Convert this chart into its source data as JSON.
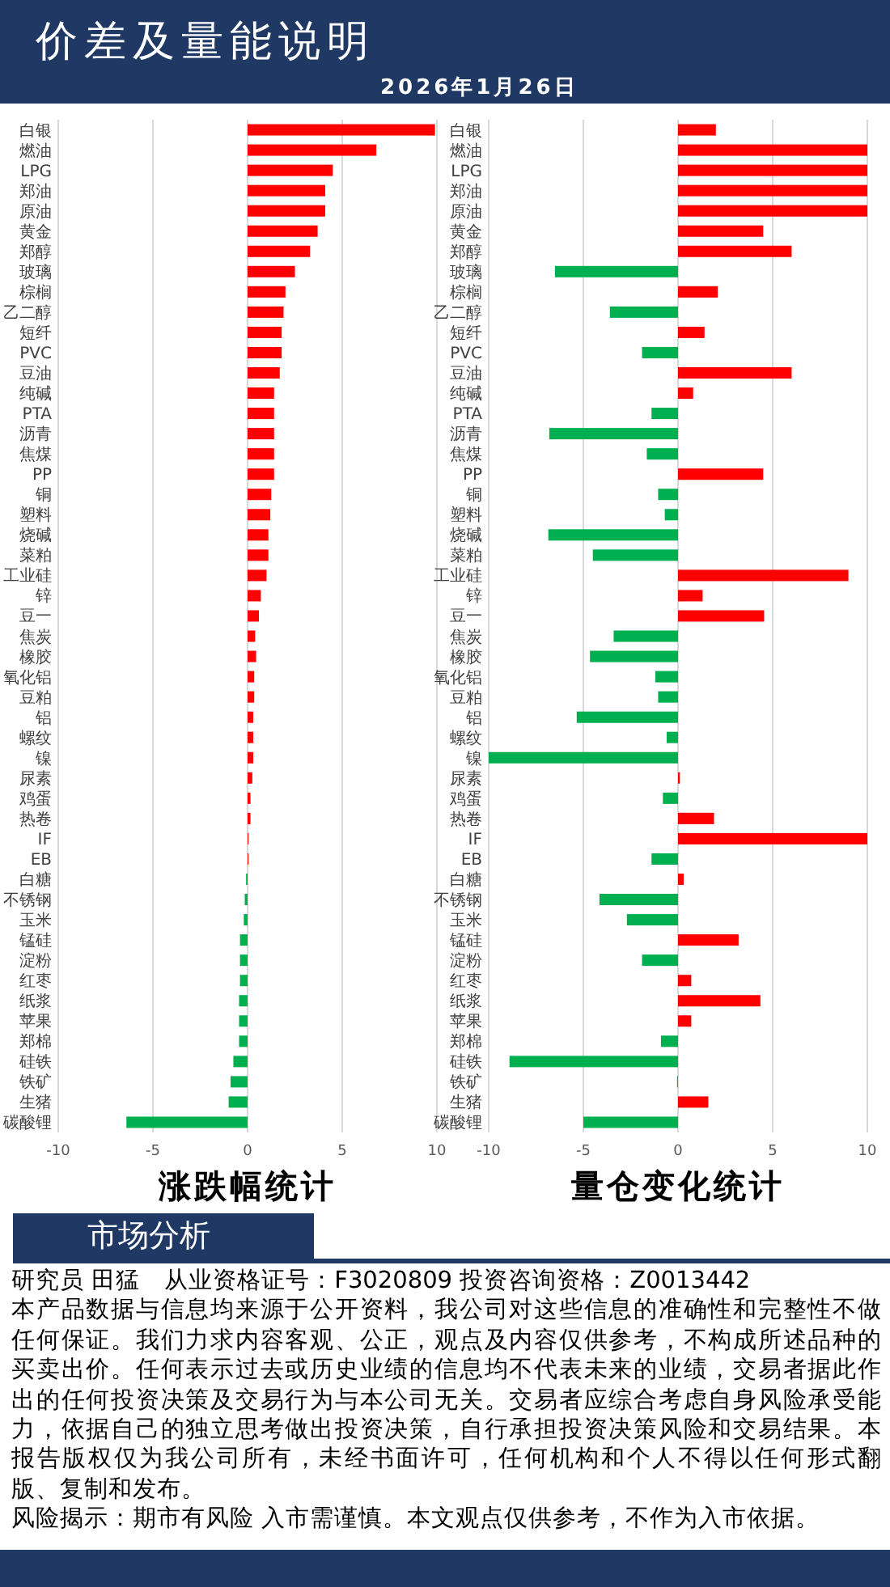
{
  "chart_data": [
    {
      "type": "bar",
      "orientation": "horizontal",
      "title": "涨跌幅统计",
      "categories": [
        "白银",
        "燃油",
        "LPG",
        "郑油",
        "原油",
        "黄金",
        "郑醇",
        "玻璃",
        "棕榈",
        "乙二醇",
        "短纤",
        "PVC",
        "豆油",
        "纯碱",
        "PTA",
        "沥青",
        "焦煤",
        "PP",
        "铜",
        "塑料",
        "烧碱",
        "菜粕",
        "工业硅",
        "锌",
        "豆一",
        "焦炭",
        "橡胶",
        "氧化铝",
        "豆粕",
        "铝",
        "螺纹",
        "镍",
        "尿素",
        "鸡蛋",
        "热卷",
        "IF",
        "EB",
        "白糖",
        "不锈钢",
        "玉米",
        "锰硅",
        "淀粉",
        "红枣",
        "纸浆",
        "苹果",
        "郑棉",
        "硅铁",
        "铁矿",
        "生猪",
        "碳酸锂"
      ],
      "values": [
        9.9,
        6.8,
        4.5,
        4.1,
        4.1,
        3.7,
        3.3,
        2.5,
        2.0,
        1.9,
        1.8,
        1.8,
        1.7,
        1.4,
        1.4,
        1.4,
        1.4,
        1.4,
        1.25,
        1.2,
        1.1,
        1.1,
        1.0,
        0.7,
        0.6,
        0.4,
        0.45,
        0.35,
        0.35,
        0.3,
        0.3,
        0.3,
        0.25,
        0.15,
        0.15,
        0.05,
        0.05,
        -0.08,
        -0.15,
        -0.2,
        -0.4,
        -0.4,
        -0.4,
        -0.45,
        -0.45,
        -0.45,
        -0.75,
        -0.9,
        -1.0,
        -6.4
      ],
      "colors": [
        "#ff0000",
        "#ff0000",
        "#ff0000",
        "#ff0000",
        "#ff0000",
        "#ff0000",
        "#ff0000",
        "#ff0000",
        "#ff0000",
        "#ff0000",
        "#ff0000",
        "#ff0000",
        "#ff0000",
        "#ff0000",
        "#ff0000",
        "#ff0000",
        "#ff0000",
        "#ff0000",
        "#ff0000",
        "#ff0000",
        "#ff0000",
        "#ff0000",
        "#ff0000",
        "#ff0000",
        "#ff0000",
        "#ff0000",
        "#ff0000",
        "#ff0000",
        "#ff0000",
        "#ff0000",
        "#ff0000",
        "#ff0000",
        "#ff0000",
        "#ff0000",
        "#ff0000",
        "#ff0000",
        "#ff0000",
        "#00b050",
        "#00b050",
        "#00b050",
        "#00b050",
        "#00b050",
        "#00b050",
        "#00b050",
        "#00b050",
        "#00b050",
        "#00b050",
        "#00b050",
        "#00b050",
        "#00b050"
      ],
      "xlim": [
        -10,
        10
      ],
      "xticks": [
        -10,
        -5,
        0,
        5,
        10
      ],
      "grid": "x"
    },
    {
      "type": "bar",
      "orientation": "horizontal",
      "title": "量仓变化统计",
      "categories": [
        "白银",
        "燃油",
        "LPG",
        "郑油",
        "原油",
        "黄金",
        "郑醇",
        "玻璃",
        "棕榈",
        "乙二醇",
        "短纤",
        "PVC",
        "豆油",
        "纯碱",
        "PTA",
        "沥青",
        "焦煤",
        "PP",
        "铜",
        "塑料",
        "烧碱",
        "菜粕",
        "工业硅",
        "锌",
        "豆一",
        "焦炭",
        "橡胶",
        "氧化铝",
        "豆粕",
        "铝",
        "螺纹",
        "镍",
        "尿素",
        "鸡蛋",
        "热卷",
        "IF",
        "EB",
        "白糖",
        "不锈钢",
        "玉米",
        "锰硅",
        "淀粉",
        "红枣",
        "纸浆",
        "苹果",
        "郑棉",
        "硅铁",
        "铁矿",
        "生猪",
        "碳酸锂"
      ],
      "values": [
        2.0,
        10,
        10,
        10,
        10,
        4.5,
        6.0,
        -6.5,
        2.1,
        -3.6,
        1.4,
        -1.9,
        6.0,
        0.8,
        -1.4,
        -6.8,
        -1.65,
        4.5,
        -1.05,
        -0.7,
        -6.85,
        -4.5,
        9.0,
        1.3,
        4.55,
        -3.4,
        -4.65,
        -1.2,
        -1.05,
        -5.35,
        -0.6,
        -10,
        0.1,
        -0.8,
        1.9,
        10,
        -1.4,
        0.3,
        -4.15,
        -2.7,
        3.2,
        -1.9,
        0.7,
        4.35,
        0.7,
        -0.9,
        -8.9,
        -0.05,
        1.6,
        -5.0
      ],
      "colors": [
        "#ff0000",
        "#ff0000",
        "#ff0000",
        "#ff0000",
        "#ff0000",
        "#ff0000",
        "#ff0000",
        "#00b050",
        "#ff0000",
        "#00b050",
        "#ff0000",
        "#00b050",
        "#ff0000",
        "#ff0000",
        "#00b050",
        "#00b050",
        "#00b050",
        "#ff0000",
        "#00b050",
        "#00b050",
        "#00b050",
        "#00b050",
        "#ff0000",
        "#ff0000",
        "#ff0000",
        "#00b050",
        "#00b050",
        "#00b050",
        "#00b050",
        "#00b050",
        "#00b050",
        "#00b050",
        "#ff0000",
        "#00b050",
        "#ff0000",
        "#ff0000",
        "#00b050",
        "#ff0000",
        "#00b050",
        "#00b050",
        "#ff0000",
        "#00b050",
        "#ff0000",
        "#ff0000",
        "#ff0000",
        "#00b050",
        "#00b050",
        "#00b050",
        "#ff0000",
        "#00b050"
      ],
      "xlim": [
        -10,
        10
      ],
      "xticks": [
        -10,
        -5,
        0,
        5,
        10
      ],
      "grid": "x"
    },
    {
      "type": "other",
      "title": "价差及量能说明",
      "subtitle": "2026年1月26日",
      "annotations": [
        "市场分析",
        "研究员 田猛　从业资格证号：F3020809 投资咨询资格：Z0013442",
        "本产品数据与信息均来源于公开资料，我公司对这些信息的准确性和完整性不做任何保证。我们力求内容客观、公正，观点及内容仅供参考，不构成所述品种的买卖出价。任何表示过去或历史业绩的信息均不代表未来的业绩，交易者据此作出的任何投资决策及交易行为与本公司无关。交易者应综合考虑自身风险承受能力，依据自己的独立思考做出投资决策，自行承担投资决策风险和交易结果。本报告版权仅为我公司所有，未经书面许可，任何机构和个人不得以任何形式翻版、复制和发布。",
        "风险揭示：期市有风险 入市需谨慎。本文观点仅供参考，不作为入市依据。"
      ]
    }
  ]
}
